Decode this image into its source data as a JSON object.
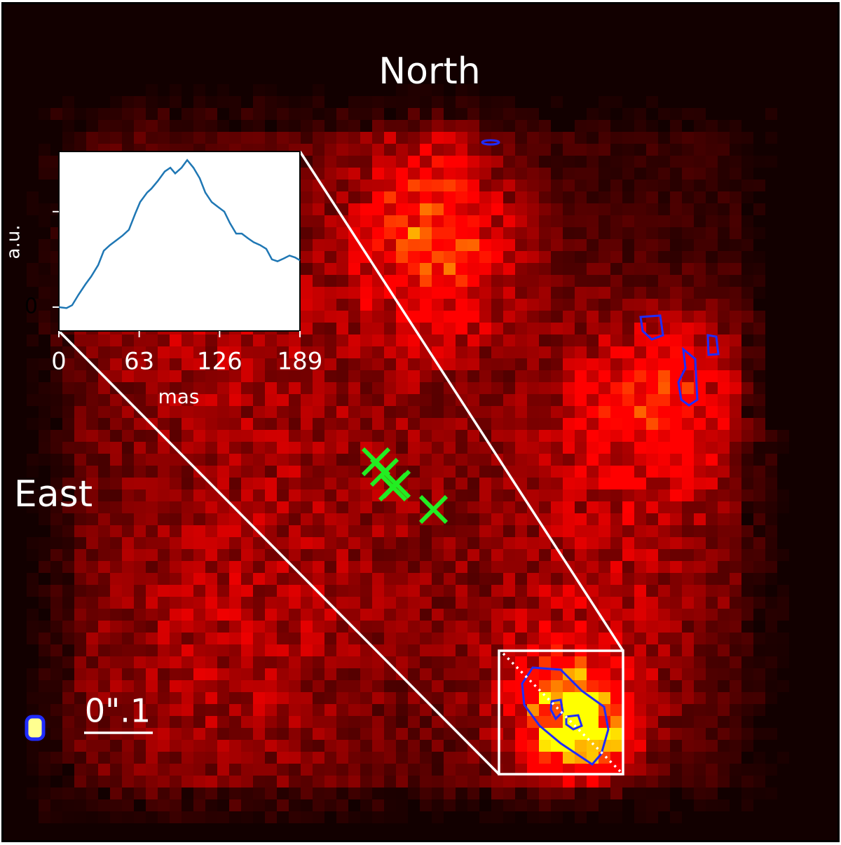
{
  "chart_data": {
    "type": "line",
    "annotations": [
      "North",
      "East",
      "0\".1"
    ],
    "xlabel": "mas",
    "ylabel": "a.u.",
    "x": [
      0,
      6.0,
      10.4,
      15.4,
      20.9,
      25.3,
      30.8,
      35.2,
      40.1,
      45.1,
      50.0,
      54.9,
      59.9,
      63.7,
      69.2,
      72.5,
      77.5,
      83.0,
      87.4,
      91.2,
      96.2,
      100.6,
      105.5,
      110.4,
      114.8,
      119.8,
      124.7,
      129.7,
      134.1,
      139.0,
      143.4,
      148.3,
      152.7,
      157.7,
      162.6,
      167.0,
      171.4,
      176.4,
      180.8,
      185.2,
      189
    ],
    "series": [
      {
        "color": "#1f77b4",
        "values": [
          0,
          -0.01,
          0.02,
          0.13,
          0.24,
          0.32,
          0.44,
          0.59,
          0.65,
          0.7,
          0.75,
          0.81,
          0.98,
          1.1,
          1.2,
          1.24,
          1.32,
          1.42,
          1.46,
          1.4,
          1.46,
          1.54,
          1.46,
          1.35,
          1.2,
          1.1,
          1.05,
          1.0,
          0.88,
          0.77,
          0.77,
          0.72,
          0.68,
          0.65,
          0.61,
          0.5,
          0.48,
          0.51,
          0.54,
          0.52,
          0.49
        ]
      }
    ],
    "xlim": [
      0,
      189
    ],
    "xticks": [
      0,
      63,
      126,
      189
    ],
    "ylim": [
      -0.25,
      1.63
    ],
    "yticks": [
      0,
      {
        "value": 1,
        "label": null
      }
    ]
  }
}
